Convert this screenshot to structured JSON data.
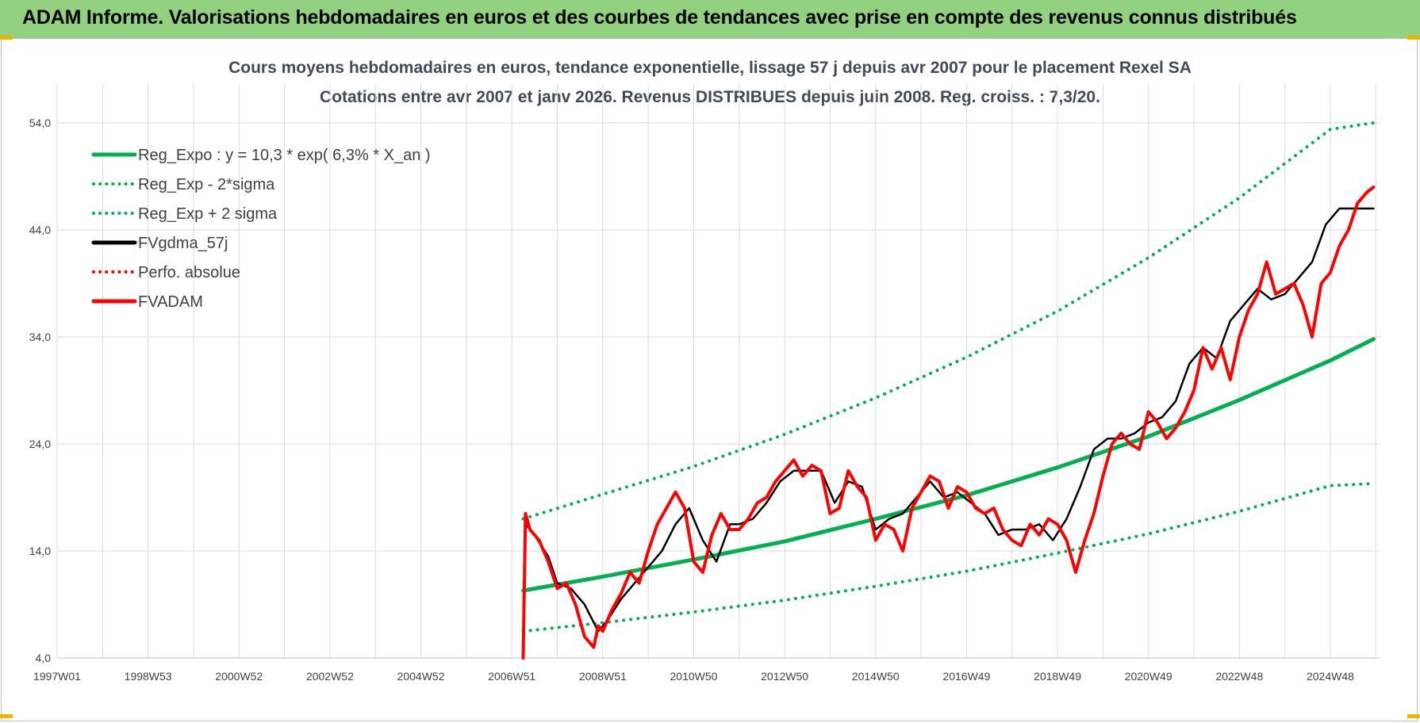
{
  "header": {
    "title": "ADAM Informe. Valorisations hebdomadaires en euros et des courbes de tendances avec prise en compte des revenus connus distribués"
  },
  "colors": {
    "header_bg": "#92d17f",
    "green": "#00b050",
    "red": "#ff0000",
    "black": "#000000",
    "grid": "#d9d9d9",
    "accent_corner": "#f0b400"
  },
  "chart_data": {
    "type": "line",
    "title": "Cours moyens hebdomadaires en euros, tendance exponentielle, lissage 57 j depuis avr 2007 pour le placement Rexel SA",
    "subtitle": "Cotations entre avr 2007 et janv 2026. Revenus DISTRIBUES depuis juin 2008. Reg. croiss. : 7,3/20.",
    "xlabel": "",
    "ylabel": "",
    "x_range": [
      1997.0,
      2026.1
    ],
    "ylim": [
      4.0,
      56.0
    ],
    "y_ticks": [
      4.0,
      14.0,
      24.0,
      34.0,
      44.0,
      54.0
    ],
    "y_tick_labels": [
      "4,0",
      "14,0",
      "24,0",
      "34,0",
      "44,0",
      "54,0"
    ],
    "x_ticks": [
      1997.0,
      1999.0,
      2001.0,
      2003.0,
      2005.0,
      2007.0,
      2009.0,
      2011.0,
      2013.0,
      2015.0,
      2017.0,
      2019.0,
      2021.0,
      2023.0,
      2025.0
    ],
    "x_tick_labels": [
      "1997W01",
      "1998W53",
      "2000W52",
      "2002W52",
      "2004W52",
      "2006W51",
      "2008W51",
      "2010W50",
      "2012W50",
      "2014W50",
      "2016W49",
      "2018W49",
      "2020W49",
      "2022W48",
      "2024W48"
    ],
    "grid": "vertical and horizontal",
    "legend_position": "top-left",
    "legend": [
      {
        "label": "Reg_Expo : y = 10,3 * exp( 6,3% *  X_an )",
        "color": "#00b050",
        "style": "solid"
      },
      {
        "label": "Reg_Exp - 2*sigma",
        "color": "#00b050",
        "style": "dotted"
      },
      {
        "label": "Reg_Exp + 2 sigma",
        "color": "#00b050",
        "style": "dotted"
      },
      {
        "label": "FVgdma_57j",
        "color": "#000000",
        "style": "solid"
      },
      {
        "label": "Perfo. absolue",
        "color": "#ff0000",
        "style": "dotted"
      },
      {
        "label": "FVADAM",
        "color": "#ff0000",
        "style": "solid"
      }
    ],
    "series": [
      {
        "name": "Reg_Expo : y = 10,3 * exp( 6,3% *  X_an )",
        "x": [
          2007.25,
          2009.0,
          2011.0,
          2013.0,
          2015.0,
          2017.0,
          2019.0,
          2021.0,
          2023.0,
          2025.0,
          2025.95
        ],
        "y": [
          10.3,
          11.6,
          13.2,
          14.9,
          17.0,
          19.2,
          21.8,
          24.7,
          28.1,
          31.8,
          33.8
        ]
      },
      {
        "name": "Reg_Exp - 2*sigma",
        "x": [
          2007.25,
          2009.0,
          2011.0,
          2013.0,
          2015.0,
          2017.0,
          2019.0,
          2021.0,
          2023.0,
          2025.0,
          2025.95
        ],
        "y": [
          6.5,
          7.3,
          8.3,
          9.4,
          10.7,
          12.1,
          13.8,
          15.6,
          17.7,
          20.1,
          20.3
        ]
      },
      {
        "name": "Reg_Exp + 2 sigma",
        "x": [
          2007.25,
          2009.0,
          2011.0,
          2013.0,
          2015.0,
          2017.0,
          2019.0,
          2021.0,
          2023.0,
          2025.0,
          2025.95
        ],
        "y": [
          17.0,
          19.3,
          21.9,
          24.9,
          28.3,
          32.1,
          36.4,
          41.4,
          47.0,
          53.4,
          54.0
        ]
      },
      {
        "name": "FVgdma_57j",
        "x": [
          2007.3,
          2007.5,
          2007.8,
          2008.0,
          2008.3,
          2008.6,
          2008.9,
          2009.1,
          2009.4,
          2009.7,
          2010.0,
          2010.3,
          2010.6,
          2010.9,
          2011.2,
          2011.5,
          2011.8,
          2012.0,
          2012.3,
          2012.6,
          2012.9,
          2013.2,
          2013.5,
          2013.8,
          2014.1,
          2014.4,
          2014.7,
          2015.0,
          2015.3,
          2015.6,
          2015.9,
          2016.2,
          2016.5,
          2016.8,
          2017.1,
          2017.4,
          2017.7,
          2018.0,
          2018.3,
          2018.6,
          2018.9,
          2019.2,
          2019.5,
          2019.8,
          2020.1,
          2020.4,
          2020.7,
          2021.0,
          2021.3,
          2021.6,
          2021.9,
          2022.2,
          2022.5,
          2022.8,
          2023.1,
          2023.4,
          2023.7,
          2024.0,
          2024.3,
          2024.6,
          2024.9,
          2025.2,
          2025.5,
          2025.8,
          2025.95
        ],
        "y": [
          16.5,
          15.5,
          13.5,
          11.0,
          10.5,
          9.0,
          6.5,
          7.5,
          9.5,
          11.0,
          12.5,
          14.0,
          16.5,
          18.0,
          15.0,
          13.0,
          16.5,
          16.5,
          17.0,
          18.5,
          20.5,
          21.5,
          21.5,
          21.5,
          18.5,
          20.5,
          20.0,
          16.0,
          17.0,
          17.5,
          19.0,
          20.5,
          19.0,
          19.5,
          18.5,
          17.5,
          15.5,
          16.0,
          16.0,
          16.5,
          15.0,
          17.0,
          20.0,
          23.5,
          24.5,
          24.5,
          25.0,
          26.0,
          26.5,
          28.0,
          31.5,
          33.0,
          32.0,
          35.5,
          37.0,
          38.5,
          37.5,
          38.0,
          39.5,
          41.0,
          44.5,
          46.0,
          46.0,
          46.0,
          46.0
        ]
      },
      {
        "name": "FVADAM",
        "x": [
          2007.25,
          2007.3,
          2007.4,
          2007.6,
          2007.8,
          2008.0,
          2008.2,
          2008.4,
          2008.6,
          2008.8,
          2008.9,
          2009.0,
          2009.2,
          2009.4,
          2009.6,
          2009.8,
          2010.0,
          2010.2,
          2010.4,
          2010.6,
          2010.8,
          2011.0,
          2011.2,
          2011.4,
          2011.6,
          2011.8,
          2012.0,
          2012.2,
          2012.4,
          2012.6,
          2012.8,
          2013.0,
          2013.2,
          2013.4,
          2013.6,
          2013.8,
          2014.0,
          2014.2,
          2014.4,
          2014.6,
          2014.8,
          2015.0,
          2015.2,
          2015.4,
          2015.6,
          2015.8,
          2016.0,
          2016.2,
          2016.4,
          2016.6,
          2016.8,
          2017.0,
          2017.2,
          2017.4,
          2017.6,
          2017.8,
          2018.0,
          2018.2,
          2018.4,
          2018.6,
          2018.8,
          2019.0,
          2019.2,
          2019.4,
          2019.6,
          2019.8,
          2020.0,
          2020.2,
          2020.4,
          2020.6,
          2020.8,
          2021.0,
          2021.2,
          2021.4,
          2021.6,
          2021.8,
          2022.0,
          2022.2,
          2022.4,
          2022.6,
          2022.8,
          2023.0,
          2023.2,
          2023.4,
          2023.6,
          2023.8,
          2024.0,
          2024.2,
          2024.4,
          2024.6,
          2024.8,
          2025.0,
          2025.2,
          2025.4,
          2025.6,
          2025.8,
          2025.95
        ],
        "y": [
          4.0,
          17.5,
          16.0,
          15.0,
          13.0,
          10.5,
          11.0,
          9.0,
          6.0,
          5.0,
          7.0,
          6.5,
          8.5,
          10.0,
          12.0,
          11.0,
          14.0,
          16.5,
          18.0,
          19.5,
          18.0,
          13.0,
          12.0,
          15.5,
          17.5,
          16.0,
          16.0,
          17.0,
          18.5,
          19.0,
          20.5,
          21.5,
          22.5,
          21.0,
          22.0,
          21.5,
          17.5,
          18.0,
          21.5,
          20.0,
          19.0,
          15.0,
          16.5,
          16.0,
          14.0,
          18.0,
          19.5,
          21.0,
          20.5,
          18.0,
          20.0,
          19.5,
          18.0,
          17.5,
          18.0,
          16.0,
          15.0,
          14.5,
          16.5,
          15.5,
          17.0,
          16.5,
          15.0,
          12.0,
          15.0,
          17.5,
          21.0,
          24.0,
          25.0,
          24.0,
          23.5,
          27.0,
          26.0,
          24.5,
          25.5,
          27.0,
          29.0,
          33.0,
          31.0,
          33.0,
          30.0,
          34.0,
          36.5,
          38.0,
          41.0,
          38.0,
          38.5,
          39.0,
          37.0,
          34.0,
          39.0,
          40.0,
          42.5,
          44.0,
          46.5,
          47.5,
          48.0
        ]
      }
    ]
  }
}
